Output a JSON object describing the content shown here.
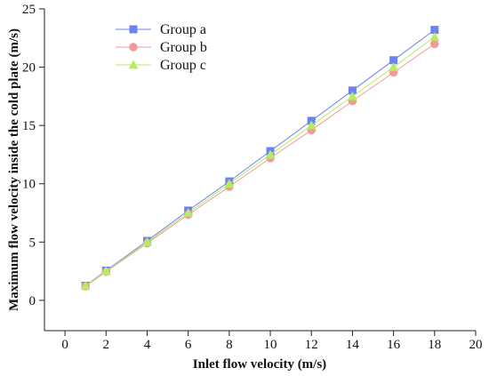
{
  "chart_data": {
    "type": "line",
    "title": "",
    "xlabel": "Inlet flow velocity (m/s)",
    "ylabel": "Maximum flow velocity inside the cold plate (m/s)",
    "xlim": [
      -1,
      20
    ],
    "ylim": [
      -2.6,
      25
    ],
    "x_ticks": [
      0,
      2,
      4,
      6,
      8,
      10,
      12,
      14,
      16,
      18,
      20
    ],
    "y_ticks": [
      0,
      5,
      10,
      15,
      20,
      25
    ],
    "grid": false,
    "legend_position": "top-left",
    "x": [
      1,
      2,
      4,
      6,
      8,
      10,
      12,
      14,
      16,
      18
    ],
    "series": [
      {
        "name": "Group a",
        "marker": "square",
        "color": "#6b82f0",
        "values": [
          1.25,
          2.55,
          5.1,
          7.7,
          10.2,
          12.8,
          15.4,
          18.0,
          20.6,
          23.2
        ]
      },
      {
        "name": "Group b",
        "marker": "circle",
        "color": "#f19a9a",
        "values": [
          1.2,
          2.45,
          4.9,
          7.35,
          9.75,
          12.2,
          14.6,
          17.1,
          19.55,
          22.0
        ]
      },
      {
        "name": "Group c",
        "marker": "triangle",
        "color": "#b6ec63",
        "values": [
          1.23,
          2.5,
          5.0,
          7.5,
          10.0,
          12.5,
          15.0,
          17.5,
          20.0,
          22.6
        ]
      }
    ]
  }
}
